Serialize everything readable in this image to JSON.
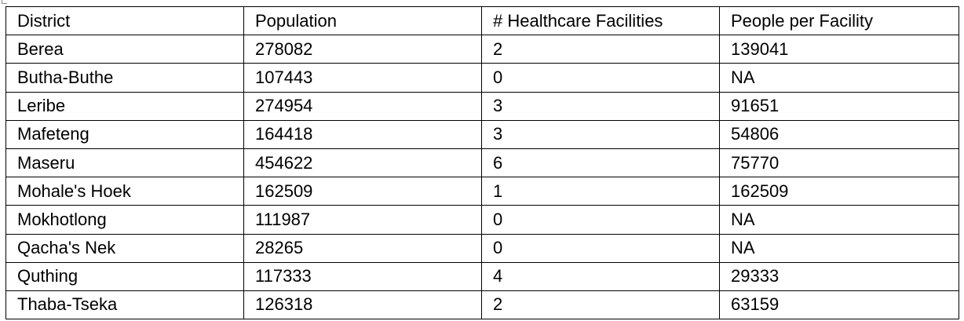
{
  "table": {
    "headers": [
      "District",
      "Population",
      "# Healthcare Facilities",
      "People per Facility"
    ],
    "rows": [
      [
        "Berea",
        "278082",
        "2",
        "139041"
      ],
      [
        "Butha-Buthe",
        "107443",
        "0",
        "NA"
      ],
      [
        "Leribe",
        "274954",
        "3",
        "91651"
      ],
      [
        "Mafeteng",
        "164418",
        "3",
        "54806"
      ],
      [
        "Maseru",
        "454622",
        "6",
        "75770"
      ],
      [
        "Mohale's Hoek",
        "162509",
        "1",
        "162509"
      ],
      [
        "Mokhotlong",
        "111987",
        "0",
        "NA"
      ],
      [
        "Qacha's Nek",
        "28265",
        "0",
        "NA"
      ],
      [
        "Quthing",
        "117333",
        "4",
        "29333"
      ],
      [
        "Thaba-Tseka",
        "126318",
        "2",
        "63159"
      ]
    ]
  }
}
